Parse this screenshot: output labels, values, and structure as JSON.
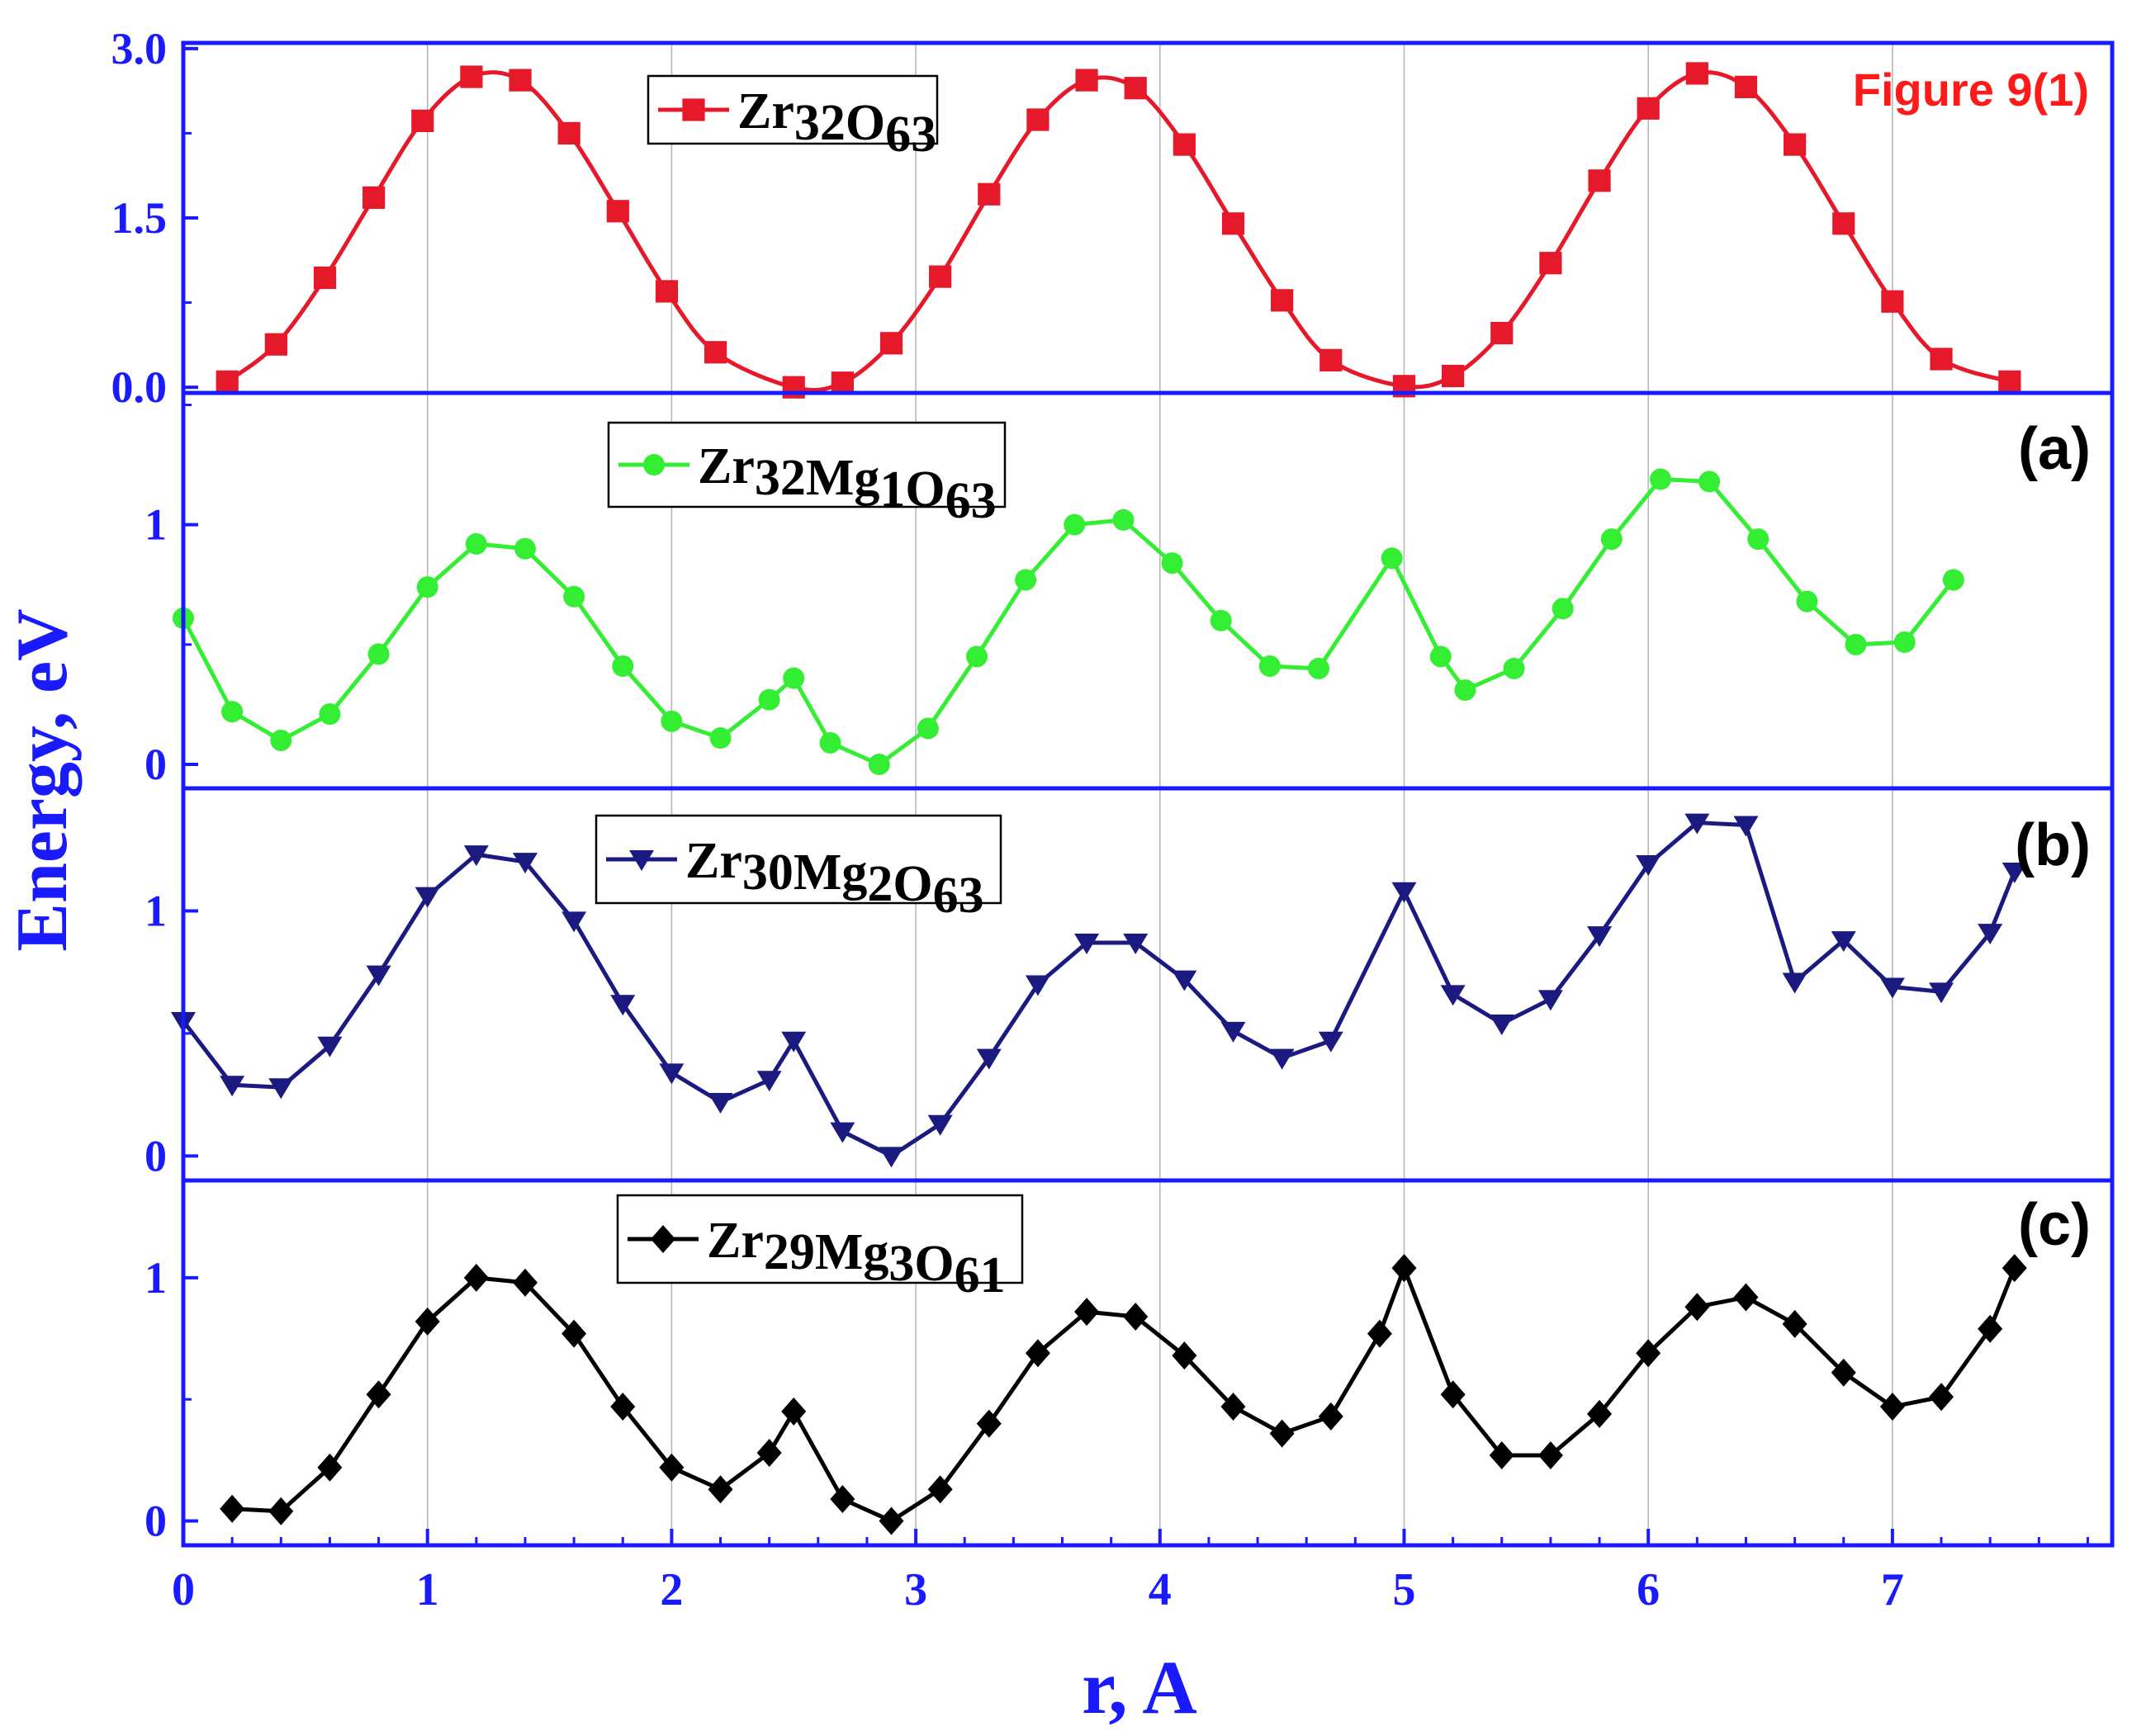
{
  "chart_data": {
    "type": "line",
    "figure_label": "Figure 9(1)",
    "xlabel": "r, A",
    "ylabel": "Energy, eV",
    "xlim": [
      0,
      7.9
    ],
    "x_ticks": [
      0,
      1,
      2,
      3,
      4,
      5,
      6,
      7
    ],
    "x_tick_labels": [
      "0",
      "1",
      "2",
      "3",
      "4",
      "5",
      "6",
      "7"
    ],
    "colors": {
      "axis": "#1a1aff",
      "grid": "#b4b4b4",
      "figure_label": "#ff1a1a"
    },
    "panels": [
      {
        "tag": "",
        "ylim": [
          -0.05,
          3.05
        ],
        "y_ticks": [
          0,
          1.5,
          3.0
        ],
        "y_tick_labels": [
          "0.0",
          "1.5",
          "3.0"
        ],
        "series": {
          "legend": {
            "base": "Zr",
            "parts": [
              [
                "Zr",
                "32"
              ],
              [
                "O",
                "63"
              ]
            ]
          },
          "color": "#e6192b",
          "marker": "square",
          "smooth": true,
          "points": [
            [
              0.18,
              0.05
            ],
            [
              0.38,
              0.38
            ],
            [
              0.58,
              0.97
            ],
            [
              0.78,
              1.68
            ],
            [
              0.98,
              2.36
            ],
            [
              1.18,
              2.75
            ],
            [
              1.38,
              2.72
            ],
            [
              1.58,
              2.25
            ],
            [
              1.78,
              1.56
            ],
            [
              1.98,
              0.85
            ],
            [
              2.18,
              0.31
            ],
            [
              2.5,
              0.0
            ],
            [
              2.7,
              0.04
            ],
            [
              2.9,
              0.39
            ],
            [
              3.1,
              0.98
            ],
            [
              3.3,
              1.71
            ],
            [
              3.5,
              2.37
            ],
            [
              3.7,
              2.72
            ],
            [
              3.9,
              2.65
            ],
            [
              4.1,
              2.15
            ],
            [
              4.3,
              1.45
            ],
            [
              4.5,
              0.77
            ],
            [
              4.7,
              0.24
            ],
            [
              5.0,
              0.01
            ],
            [
              5.2,
              0.1
            ],
            [
              5.4,
              0.48
            ],
            [
              5.6,
              1.1
            ],
            [
              5.8,
              1.83
            ],
            [
              6.0,
              2.47
            ],
            [
              6.2,
              2.78
            ],
            [
              6.4,
              2.66
            ],
            [
              6.6,
              2.15
            ],
            [
              6.8,
              1.45
            ],
            [
              7.0,
              0.76
            ],
            [
              7.2,
              0.25
            ],
            [
              7.48,
              0.05
            ]
          ]
        }
      },
      {
        "tag": "(a)",
        "ylim": [
          -0.1,
          1.55
        ],
        "y_ticks": [
          0,
          1
        ],
        "y_tick_labels": [
          "0",
          "1"
        ],
        "series": {
          "legend": {
            "parts": [
              [
                "Zr",
                "32"
              ],
              [
                "Mg",
                "1"
              ],
              [
                "O",
                "63"
              ]
            ]
          },
          "color": "#33ee33",
          "marker": "circle",
          "smooth": false,
          "points": [
            [
              0.0,
              0.61
            ],
            [
              0.2,
              0.22
            ],
            [
              0.4,
              0.1
            ],
            [
              0.6,
              0.21
            ],
            [
              0.8,
              0.46
            ],
            [
              1.0,
              0.74
            ],
            [
              1.2,
              0.92
            ],
            [
              1.4,
              0.9
            ],
            [
              1.6,
              0.7
            ],
            [
              1.8,
              0.41
            ],
            [
              2.0,
              0.18
            ],
            [
              2.2,
              0.11
            ],
            [
              2.4,
              0.27
            ],
            [
              2.5,
              0.36
            ],
            [
              2.65,
              0.09
            ],
            [
              2.85,
              0.0
            ],
            [
              3.05,
              0.15
            ],
            [
              3.25,
              0.45
            ],
            [
              3.45,
              0.77
            ],
            [
              3.65,
              1.0
            ],
            [
              3.85,
              1.02
            ],
            [
              4.05,
              0.84
            ],
            [
              4.25,
              0.6
            ],
            [
              4.45,
              0.41
            ],
            [
              4.65,
              0.4
            ],
            [
              4.95,
              0.86
            ],
            [
              5.15,
              0.45
            ],
            [
              5.25,
              0.31
            ],
            [
              5.45,
              0.4
            ],
            [
              5.65,
              0.65
            ],
            [
              5.85,
              0.94
            ],
            [
              6.05,
              1.19
            ],
            [
              6.25,
              1.18
            ],
            [
              6.45,
              0.94
            ],
            [
              6.65,
              0.68
            ],
            [
              6.85,
              0.5
            ],
            [
              7.05,
              0.51
            ],
            [
              7.25,
              0.77
            ]
          ]
        }
      },
      {
        "tag": "(b)",
        "ylim": [
          -0.1,
          1.5
        ],
        "y_ticks": [
          0,
          1
        ],
        "y_tick_labels": [
          "0",
          "1"
        ],
        "series": {
          "legend": {
            "parts": [
              [
                "Zr",
                "30"
              ],
              [
                "Mg",
                "2"
              ],
              [
                "O",
                "63"
              ]
            ]
          },
          "color": "#1a1a80",
          "marker": "triangle-down",
          "smooth": false,
          "points": [
            [
              0.0,
              0.55
            ],
            [
              0.2,
              0.29
            ],
            [
              0.4,
              0.28
            ],
            [
              0.6,
              0.45
            ],
            [
              0.8,
              0.74
            ],
            [
              1.0,
              1.06
            ],
            [
              1.2,
              1.23
            ],
            [
              1.4,
              1.2
            ],
            [
              1.6,
              0.96
            ],
            [
              1.8,
              0.62
            ],
            [
              2.0,
              0.34
            ],
            [
              2.2,
              0.22
            ],
            [
              2.4,
              0.31
            ],
            [
              2.5,
              0.47
            ],
            [
              2.7,
              0.1
            ],
            [
              2.9,
              0.0
            ],
            [
              3.1,
              0.13
            ],
            [
              3.3,
              0.4
            ],
            [
              3.5,
              0.7
            ],
            [
              3.7,
              0.87
            ],
            [
              3.9,
              0.87
            ],
            [
              4.1,
              0.72
            ],
            [
              4.3,
              0.51
            ],
            [
              4.5,
              0.4
            ],
            [
              4.7,
              0.47
            ],
            [
              5.0,
              1.08
            ],
            [
              5.2,
              0.66
            ],
            [
              5.4,
              0.54
            ],
            [
              5.6,
              0.64
            ],
            [
              5.8,
              0.9
            ],
            [
              6.0,
              1.19
            ],
            [
              6.2,
              1.36
            ],
            [
              6.4,
              1.35
            ],
            [
              6.6,
              0.71
            ],
            [
              6.8,
              0.88
            ],
            [
              7.0,
              0.69
            ],
            [
              7.2,
              0.67
            ],
            [
              7.4,
              0.91
            ],
            [
              7.5,
              1.16
            ]
          ]
        }
      },
      {
        "tag": "(c)",
        "ylim": [
          -0.1,
          1.4
        ],
        "y_ticks": [
          0,
          1
        ],
        "y_tick_labels": [
          "0",
          "1"
        ],
        "series": {
          "legend": {
            "parts": [
              [
                "Zr",
                "29"
              ],
              [
                "Mg",
                "3"
              ],
              [
                "O",
                "61"
              ]
            ]
          },
          "color": "#000000",
          "marker": "diamond",
          "smooth": false,
          "points": [
            [
              0.2,
              0.05
            ],
            [
              0.4,
              0.04
            ],
            [
              0.6,
              0.22
            ],
            [
              0.8,
              0.52
            ],
            [
              1.0,
              0.82
            ],
            [
              1.2,
              1.0
            ],
            [
              1.4,
              0.98
            ],
            [
              1.6,
              0.77
            ],
            [
              1.8,
              0.47
            ],
            [
              2.0,
              0.22
            ],
            [
              2.2,
              0.13
            ],
            [
              2.4,
              0.28
            ],
            [
              2.5,
              0.45
            ],
            [
              2.7,
              0.09
            ],
            [
              2.9,
              0.0
            ],
            [
              3.1,
              0.13
            ],
            [
              3.3,
              0.4
            ],
            [
              3.5,
              0.69
            ],
            [
              3.7,
              0.86
            ],
            [
              3.9,
              0.84
            ],
            [
              4.1,
              0.68
            ],
            [
              4.3,
              0.47
            ],
            [
              4.5,
              0.36
            ],
            [
              4.7,
              0.43
            ],
            [
              4.9,
              0.77
            ],
            [
              5.0,
              1.04
            ],
            [
              5.2,
              0.52
            ],
            [
              5.4,
              0.27
            ],
            [
              5.6,
              0.27
            ],
            [
              5.8,
              0.44
            ],
            [
              6.0,
              0.69
            ],
            [
              6.2,
              0.88
            ],
            [
              6.4,
              0.92
            ],
            [
              6.6,
              0.81
            ],
            [
              6.8,
              0.61
            ],
            [
              7.0,
              0.47
            ],
            [
              7.2,
              0.51
            ],
            [
              7.4,
              0.79
            ],
            [
              7.5,
              1.04
            ]
          ]
        }
      }
    ]
  }
}
